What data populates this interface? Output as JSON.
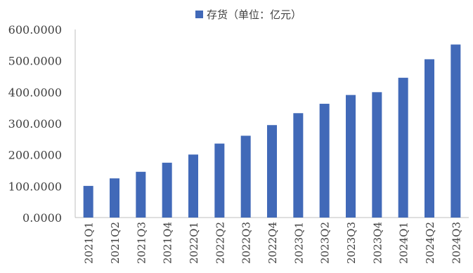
{
  "colors": {
    "bar": "#4169b8",
    "axis": "#bfbfbf",
    "text": "#404040"
  },
  "chart_data": {
    "type": "bar",
    "legend": "存货（单位：亿元）",
    "legend_position": "top",
    "grid": false,
    "categories": [
      "2021Q1",
      "2021Q2",
      "2021Q3",
      "2021Q4",
      "2022Q1",
      "2022Q2",
      "2022Q3",
      "2022Q4",
      "2023Q1",
      "2023Q2",
      "2023Q3",
      "2023Q4",
      "2024Q1",
      "2024Q2",
      "2024Q3"
    ],
    "y_tick_labels": [
      "0.0000",
      "100.0000",
      "200.0000",
      "300.0000",
      "400.0000",
      "500.0000",
      "600.0000"
    ],
    "ylim": [
      0,
      600
    ],
    "series": [
      {
        "name": "存货（单位：亿元）",
        "values": [
          101,
          125,
          146,
          175,
          201,
          236,
          261,
          295,
          333,
          363,
          391,
          400,
          446,
          505,
          552
        ]
      }
    ]
  }
}
